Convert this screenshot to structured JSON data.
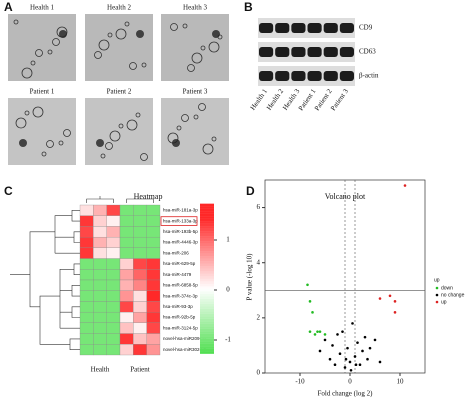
{
  "panels": {
    "A": {
      "label": "A",
      "health": [
        "Health 1",
        "Health 2",
        "Health 3"
      ],
      "patient": [
        "Patient 1",
        "Patient 2",
        "Patient 3"
      ]
    },
    "B": {
      "label": "B",
      "bands": [
        "CD9",
        "CD63",
        "β-actin"
      ],
      "lanes": [
        "Health 1",
        "Health 2",
        "Health 3",
        "Patient 1",
        "Patient 2",
        "Patient 3"
      ]
    },
    "C": {
      "label": "C",
      "title": "Heatmap",
      "groups": [
        "Health",
        "Patient"
      ],
      "genes": [
        "hsa-miR-181a-3p",
        "hsa-miR-133a-3p",
        "hsa-miR-193b-5p",
        "hsa-miR-4446-3p",
        "hsa-miR-206",
        "hsa-miR-629-5p",
        "hsa-miR-4479",
        "hsa-miR-6858-5p",
        "hsa-miR-374c-3p",
        "hsa-miR-93-3p",
        "hsa-miR-92b-5p",
        "hsa-miR-3124-5p",
        "novel-hsa-miR209-3p",
        "novel-hsa-miR302-5p"
      ],
      "values": [
        [
          0.2,
          0.5,
          1.2,
          -1,
          -1,
          -1
        ],
        [
          1.3,
          0.3,
          0.1,
          -1,
          -1,
          -1
        ],
        [
          1.2,
          0.2,
          0.5,
          -1,
          -1,
          -1
        ],
        [
          1.3,
          0.5,
          0.3,
          -1,
          -1,
          -1
        ],
        [
          1.3,
          0.2,
          0.1,
          -1,
          -1,
          -1
        ],
        [
          -1,
          -1,
          -1,
          0.3,
          1.2,
          1.3
        ],
        [
          -1,
          -1,
          -1,
          0.6,
          1.0,
          1.3
        ],
        [
          -1,
          -1,
          -1,
          0.5,
          0.8,
          1.3
        ],
        [
          -1,
          -1,
          -1,
          0.7,
          0.2,
          1.4
        ],
        [
          -1,
          -1,
          -1,
          1.2,
          0.3,
          1.2
        ],
        [
          -1,
          -1,
          -1,
          0.1,
          0.6,
          1.3
        ],
        [
          -1,
          -1,
          -1,
          0.4,
          0.1,
          1.2
        ],
        [
          -1,
          -1,
          -1,
          1.3,
          0.4,
          0.6
        ],
        [
          -1,
          -1,
          -1,
          0.3,
          1.3,
          0.7
        ]
      ],
      "colorbar": {
        "lim": [
          -1.3,
          1.7
        ],
        "ticks": [
          1,
          0,
          -1
        ]
      }
    },
    "D": {
      "label": "D",
      "type": "scatter",
      "title": "Volcano plot",
      "xlabel": "Fold change (log 2)",
      "ylabel": "P value (-log 10)",
      "xlim": [
        -17,
        15
      ],
      "ylim": [
        0,
        7
      ],
      "xticks": [
        -10,
        0,
        10
      ],
      "yticks": [
        0,
        2,
        4,
        6
      ],
      "hline": 3,
      "vlines": [
        -1,
        1
      ],
      "legend_title": "up",
      "series": [
        {
          "name": "down",
          "color": "#22bb22",
          "x": [
            -8.5,
            -8,
            -7.5,
            -8,
            -7,
            -6,
            -5,
            -6.5
          ],
          "y": [
            3.2,
            2.6,
            2.2,
            1.5,
            1.4,
            1.5,
            1.4,
            1.5
          ]
        },
        {
          "name": "no change",
          "color": "#000000",
          "x": [
            -6,
            -5,
            -4,
            -3.5,
            -3,
            -2,
            -1.5,
            -1,
            -0.5,
            0,
            0.5,
            1,
            1.5,
            2,
            2.5,
            3,
            3.5,
            4,
            5,
            6,
            0.2,
            -0.8,
            1.2,
            -2.5
          ],
          "y": [
            0.8,
            1.2,
            0.5,
            1.0,
            0.3,
            0.7,
            1.5,
            0.2,
            0.9,
            0.4,
            1.8,
            0.6,
            1.1,
            0.3,
            0.8,
            1.3,
            0.5,
            0.9,
            1.2,
            0.4,
            0.1,
            0.5,
            0.3,
            1.4
          ]
        },
        {
          "name": "up",
          "color": "#dd2222",
          "x": [
            11,
            6,
            8,
            9,
            9
          ],
          "y": [
            6.8,
            2.7,
            2.8,
            2.6,
            2.2
          ]
        }
      ]
    }
  }
}
